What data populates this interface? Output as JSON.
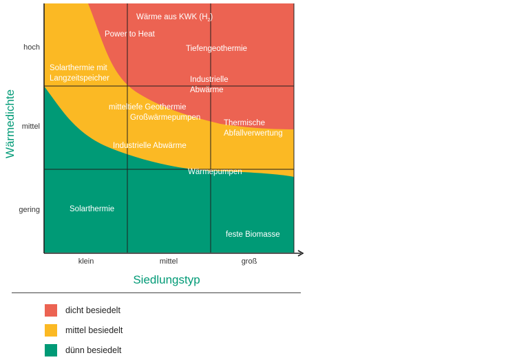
{
  "colors": {
    "high": "#ec6352",
    "medium": "#fbb924",
    "low": "#009a76",
    "axis_title": "#009a76"
  },
  "axes": {
    "x_title": "Siedlungstyp",
    "y_title": "Wärmedichte",
    "x_ticks": [
      "klein",
      "mittel",
      "groß"
    ],
    "y_ticks": [
      "hoch",
      "mittel",
      "gering"
    ]
  },
  "regions": {
    "kwk_main": "Wärme aus KWK (H",
    "kwk_sub": "2",
    "kwk_close": ")",
    "power_to_heat": "Power to Heat",
    "tiefengeothermie": "Tiefengeothermie",
    "industrielle_abwaerme_high_1": "Industrielle",
    "industrielle_abwaerme_high_2": "Abwärme",
    "solarthermie_speicher_1": "Solarthermie mit",
    "solarthermie_speicher_2": "Langzeitspeicher",
    "mitteltiefe_geothermie": "mitteltiefe Geothermie",
    "grosswaermepumpen": "Großwärmepumpen",
    "thermische_1": "Thermische",
    "thermische_2": "Abfallverwertung",
    "industrielle_abwaerme_mid": "Industrielle Abwärme",
    "waermepumpen": "Wärmepumpen",
    "solarthermie": "Solarthermie",
    "feste_biomasse": "feste Biomasse"
  },
  "legend": [
    {
      "label": "dicht besiedelt",
      "color": "#ec6352"
    },
    {
      "label": "mittel besiedelt",
      "color": "#fbb924"
    },
    {
      "label": "dünn besiedelt",
      "color": "#009a76"
    }
  ]
}
